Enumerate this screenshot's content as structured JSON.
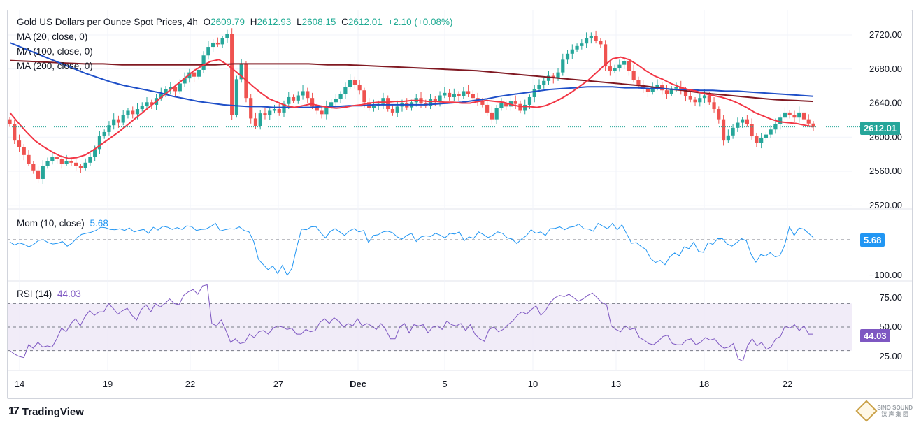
{
  "header": {
    "title": "Gold US Dollars per Ounce Spot Prices, 4h",
    "open_label": "O",
    "open": "2609.79",
    "high_label": "H",
    "high": "2612.93",
    "low_label": "L",
    "low": "2608.15",
    "close_label": "C",
    "close": "2612.01",
    "change": "+2.10 (+0.08%)"
  },
  "indicators": {
    "ma20": "MA (20, close, 0)",
    "ma100": "MA (100, close, 0)",
    "ma200": "MA (200, close, 0)",
    "mom_label": "Mom (10, close)",
    "mom_value": "5.68",
    "rsi_label": "RSI (14)",
    "rsi_value": "44.03"
  },
  "price_tags": {
    "price": "2612.01",
    "mom": "5.68",
    "rsi": "44.03"
  },
  "colors": {
    "up": "#26a69a",
    "down": "#ef5350",
    "ma20": "#f23645",
    "ma100": "#1e4fc8",
    "ma200": "#801922",
    "mom": "#2196f3",
    "rsi": "#7e57c2",
    "rsi_band": "#ede7f6"
  },
  "footer": {
    "brand": "TradingView",
    "watermark_line1": "SINO SOUND",
    "watermark_line2": "汉 声 集 团"
  },
  "chart_data": [
    {
      "type": "candlestick",
      "title": "Gold US Dollars per Ounce Spot Prices, 4h",
      "y_ticks": [
        "2720.00",
        "2680.00",
        "2640.00",
        "2600.00",
        "2560.00",
        "2520.00"
      ],
      "ylim": [
        2515,
        2732
      ],
      "x_ticks": [
        "14",
        "19",
        "22",
        "27",
        "Dec",
        "5",
        "10",
        "13",
        "18",
        "22"
      ],
      "last_price": 2612.01,
      "close_series": [
        2615,
        2596,
        2588,
        2579,
        2569,
        2561,
        2551,
        2566,
        2572,
        2577,
        2574,
        2569,
        2572,
        2570,
        2566,
        2564,
        2570,
        2577,
        2586,
        2601,
        2606,
        2614,
        2621,
        2617,
        2626,
        2631,
        2627,
        2633,
        2637,
        2641,
        2638,
        2646,
        2651,
        2656,
        2659,
        2654,
        2663,
        2669,
        2676,
        2671,
        2679,
        2696,
        2706,
        2711,
        2709,
        2716,
        2721,
        2626,
        2668,
        2686,
        2646,
        2622,
        2613,
        2628,
        2626,
        2631,
        2633,
        2629,
        2639,
        2647,
        2643,
        2649,
        2654,
        2646,
        2636,
        2631,
        2627,
        2636,
        2641,
        2645,
        2651,
        2659,
        2667,
        2661,
        2655,
        2641,
        2634,
        2637,
        2639,
        2646,
        2633,
        2629,
        2636,
        2640,
        2635,
        2641,
        2646,
        2640,
        2637,
        2645,
        2642,
        2649,
        2652,
        2647,
        2651,
        2648,
        2654,
        2651,
        2646,
        2643,
        2638,
        2629,
        2621,
        2634,
        2640,
        2636,
        2642,
        2639,
        2631,
        2638,
        2647,
        2656,
        2661,
        2666,
        2672,
        2669,
        2676,
        2691,
        2698,
        2703,
        2707,
        2710,
        2716,
        2719,
        2713,
        2709,
        2683,
        2678,
        2681,
        2685,
        2689,
        2678,
        2667,
        2661,
        2657,
        2653,
        2659,
        2661,
        2655,
        2651,
        2657,
        2659,
        2655,
        2648,
        2644,
        2641,
        2646,
        2649,
        2641,
        2633,
        2621,
        2596,
        2602,
        2611,
        2617,
        2621,
        2615,
        2601,
        2593,
        2599,
        2603,
        2609,
        2615,
        2623,
        2629,
        2626,
        2623,
        2629,
        2621,
        2616,
        2612
      ],
      "series": [
        {
          "name": "MA (20, close, 0)",
          "values": [
            2629,
            2617,
            2606,
            2596,
            2589,
            2583,
            2578,
            2575,
            2576,
            2579,
            2585,
            2592,
            2599,
            2606,
            2614,
            2622,
            2630,
            2638,
            2646,
            2654,
            2662,
            2670,
            2678,
            2684,
            2689,
            2691,
            2685,
            2677,
            2669,
            2660,
            2652,
            2645,
            2641,
            2637,
            2635,
            2637,
            2639,
            2637,
            2635,
            2634,
            2635,
            2637,
            2638,
            2640,
            2641,
            2641,
            2642,
            2642,
            2643,
            2643,
            2642,
            2642,
            2641,
            2641,
            2640,
            2640,
            2642,
            2643,
            2642,
            2641,
            2638,
            2636,
            2636,
            2635,
            2637,
            2641,
            2646,
            2652,
            2659,
            2666,
            2675,
            2684,
            2692,
            2694,
            2691,
            2685,
            2678,
            2672,
            2668,
            2663,
            2659,
            2656,
            2654,
            2651,
            2649,
            2647,
            2644,
            2640,
            2635,
            2629,
            2625,
            2621,
            2618,
            2617,
            2616,
            2614,
            2612
          ]
        },
        {
          "name": "MA (100, close, 0)",
          "values": [
            2711,
            2705,
            2699,
            2693,
            2687,
            2681,
            2675,
            2670,
            2665,
            2661,
            2658,
            2655,
            2652,
            2648,
            2645,
            2642,
            2640,
            2638,
            2637,
            2636,
            2636,
            2635,
            2635,
            2635,
            2635,
            2636,
            2636,
            2637,
            2637,
            2638,
            2638,
            2638,
            2638,
            2638,
            2639,
            2640,
            2641,
            2643,
            2645,
            2648,
            2650,
            2652,
            2654,
            2656,
            2657,
            2658,
            2659,
            2659,
            2659,
            2658,
            2658,
            2657,
            2657,
            2656,
            2656,
            2655,
            2655,
            2654,
            2654,
            2653,
            2652,
            2651,
            2650,
            2649,
            2648
          ]
        },
        {
          "name": "MA (200, close, 0)",
          "values": [
            2690,
            2689,
            2688,
            2687,
            2686,
            2686,
            2685,
            2685,
            2685,
            2685,
            2685,
            2685,
            2686,
            2686,
            2686,
            2686,
            2686,
            2685,
            2685,
            2684,
            2683,
            2682,
            2681,
            2680,
            2679,
            2678,
            2676,
            2674,
            2672,
            2670,
            2668,
            2666,
            2664,
            2662,
            2660,
            2657,
            2655,
            2652,
            2650,
            2648,
            2646,
            2644,
            2643,
            2642
          ]
        }
      ]
    },
    {
      "type": "line",
      "title": "Mom (10, close)",
      "series_name": "Mom (10, close)",
      "y_ticks": [
        "−100.00"
      ],
      "ylim": [
        -110,
        90
      ],
      "last_value": 5.68,
      "values": [
        -6,
        -15,
        -9,
        -13,
        -20,
        -13,
        -2,
        0,
        -8,
        -12,
        -10,
        -5,
        -18,
        -10,
        5,
        15,
        18,
        21,
        26,
        35,
        34,
        29,
        28,
        31,
        26,
        33,
        22,
        26,
        29,
        18,
        35,
        27,
        38,
        35,
        29,
        34,
        29,
        39,
        37,
        26,
        29,
        30,
        37,
        46,
        25,
        28,
        31,
        30,
        36,
        26,
        22,
        -5,
        -55,
        -70,
        -84,
        -74,
        -95,
        -72,
        -100,
        -80,
        -20,
        30,
        28,
        36,
        37,
        20,
        5,
        23,
        31,
        22,
        12,
        25,
        31,
        22,
        26,
        -8,
        12,
        14,
        22,
        24,
        20,
        8,
        2,
        12,
        18,
        -5,
        8,
        11,
        9,
        18,
        13,
        5,
        18,
        16,
        22,
        -3,
        8,
        4,
        22,
        15,
        6,
        13,
        22,
        18,
        5,
        2,
        -11,
        2,
        11,
        28,
        18,
        22,
        12,
        31,
        32,
        36,
        28,
        35,
        37,
        44,
        31,
        30,
        24,
        46,
        38,
        31,
        46,
        28,
        42,
        16,
        -10,
        -8,
        -19,
        -27,
        -53,
        -64,
        -58,
        -70,
        -48,
        -37,
        -45,
        -20,
        -25,
        -7,
        -33,
        -35,
        -8,
        -13,
        3,
        3,
        -12,
        -18,
        -8,
        3,
        -3,
        -41,
        -63,
        -42,
        -46,
        -36,
        -48,
        -45,
        -15,
        36,
        12,
        33,
        30,
        18,
        6
      ]
    },
    {
      "type": "line",
      "title": "RSI (14)",
      "series_name": "RSI (14)",
      "y_ticks": [
        "75.00",
        "50.00",
        "25.00"
      ],
      "bands": [
        30,
        50,
        70
      ],
      "ylim": [
        14,
        88
      ],
      "last_value": 44.03,
      "values": [
        30,
        27,
        25,
        24,
        35,
        32,
        37,
        33,
        34,
        33,
        40,
        49,
        46,
        53,
        57,
        51,
        59,
        64,
        60,
        63,
        63,
        70,
        66,
        61,
        64,
        66,
        60,
        56,
        65,
        69,
        63,
        70,
        67,
        70,
        74,
        70,
        69,
        77,
        80,
        82,
        78,
        85,
        86,
        53,
        51,
        56,
        47,
        37,
        40,
        36,
        37,
        44,
        41,
        46,
        47,
        44,
        49,
        51,
        50,
        48,
        49,
        44,
        44,
        48,
        46,
        47,
        54,
        57,
        53,
        58,
        55,
        50,
        53,
        51,
        57,
        51,
        53,
        51,
        48,
        53,
        48,
        40,
        40,
        50,
        53,
        45,
        52,
        51,
        52,
        45,
        50,
        51,
        48,
        55,
        52,
        51,
        53,
        47,
        52,
        44,
        40,
        38,
        48,
        50,
        46,
        48,
        52,
        55,
        60,
        63,
        61,
        65,
        68,
        60,
        64,
        71,
        75,
        77,
        76,
        78,
        75,
        72,
        74,
        77,
        79,
        75,
        71,
        69,
        51,
        48,
        46,
        51,
        48,
        49,
        41,
        39,
        36,
        35,
        38,
        42,
        43,
        36,
        35,
        35,
        39,
        40,
        35,
        37,
        41,
        39,
        40,
        35,
        32,
        33,
        36,
        23,
        21,
        34,
        40,
        34,
        37,
        31,
        33,
        40,
        42,
        51,
        49,
        52,
        47,
        51,
        44,
        44
      ]
    }
  ]
}
